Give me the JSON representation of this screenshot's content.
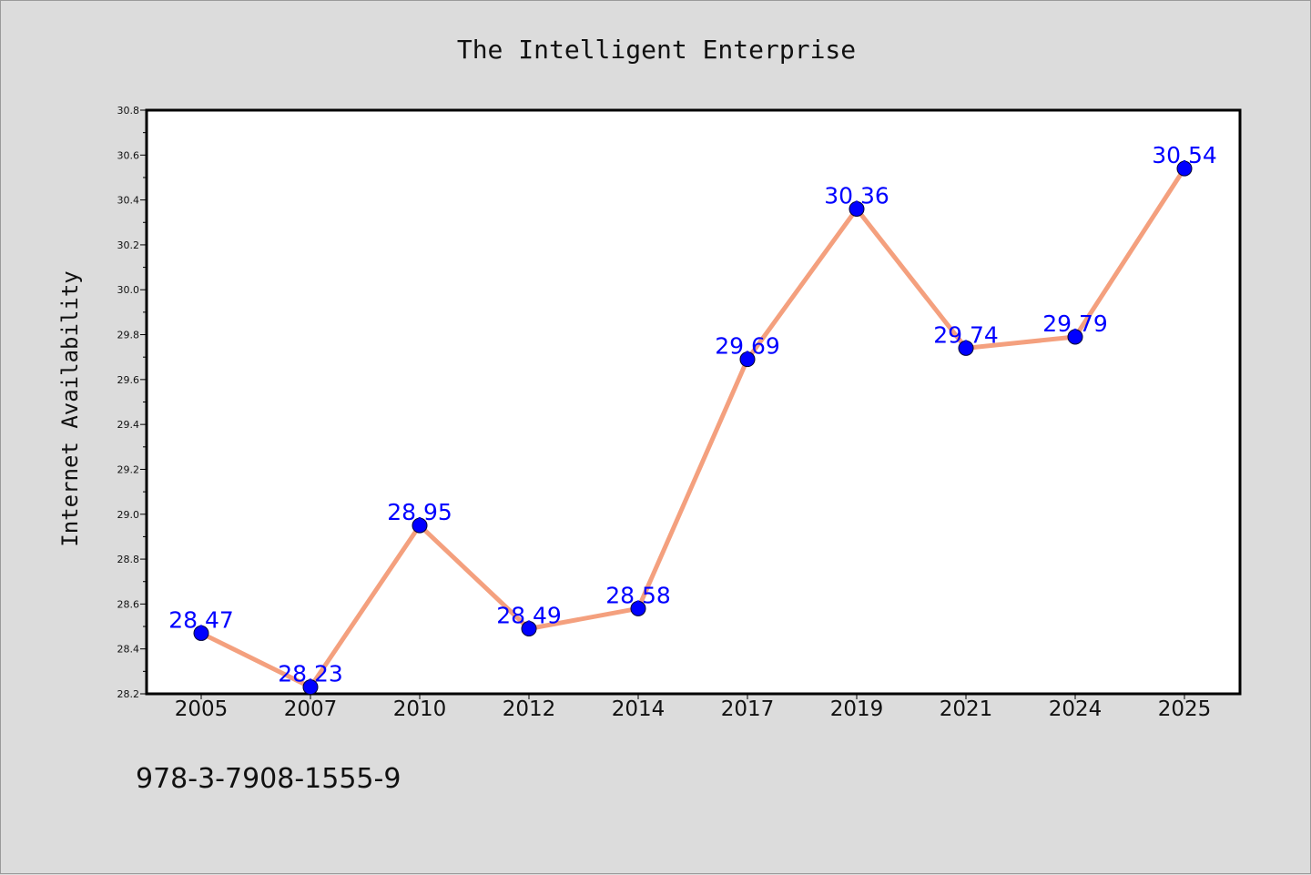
{
  "chart_data": {
    "type": "line",
    "title": "The Intelligent Enterprise",
    "ylabel": "Internet Availability",
    "xlabel": "",
    "categories": [
      "2005",
      "2007",
      "2010",
      "2012",
      "2014",
      "2017",
      "2019",
      "2021",
      "2024",
      "2025"
    ],
    "series": [
      {
        "values": [
          28.47,
          28.23,
          28.95,
          28.49,
          28.58,
          29.69,
          30.36,
          29.74,
          29.79,
          30.54
        ],
        "labels": [
          "28.47",
          "28.23",
          "28.95",
          "28.49",
          "28.58",
          "29.69",
          "30.36",
          "29.74",
          "29.79",
          "30.54"
        ],
        "line_color": "#f4a07e",
        "marker_color": "#0000ff",
        "label_color": "#0000ff"
      }
    ],
    "ylim": [
      28.2,
      30.8
    ],
    "yticks": [
      "28.2",
      "28.4",
      "28.6",
      "28.8",
      "29.0",
      "29.2",
      "29.4",
      "29.6",
      "29.8",
      "30.0",
      "30.2",
      "30.4",
      "30.6",
      "30.8"
    ],
    "grid": false,
    "legend": "none"
  },
  "footnote": "978-3-7908-1555-9",
  "colors": {
    "background": "#dcdcdc",
    "plot_area": "#ffffff",
    "axis": "#000000"
  }
}
